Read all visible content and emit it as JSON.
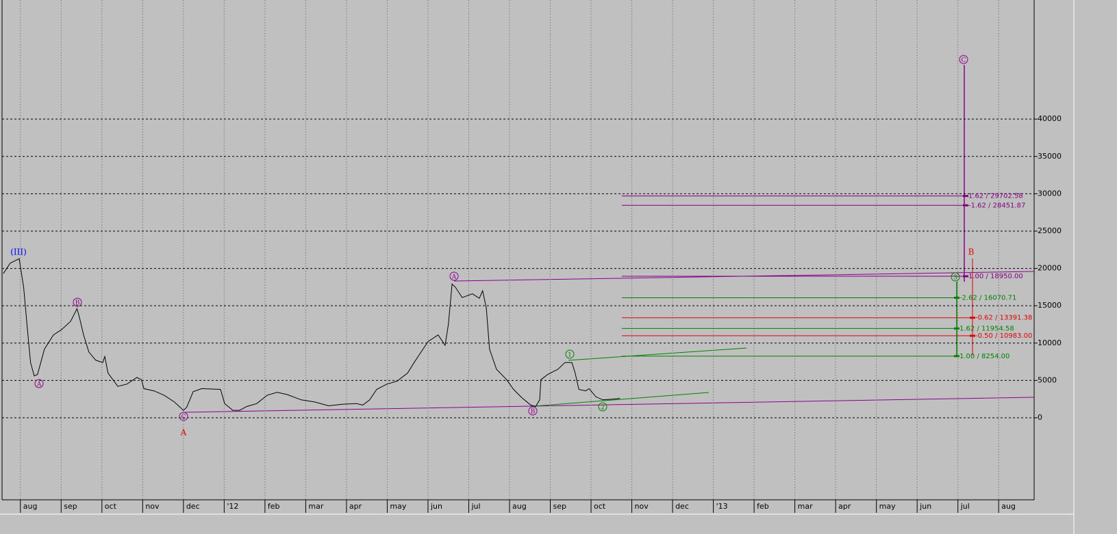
{
  "chart_data": {
    "type": "line",
    "xlim": [
      -0.5,
      24.87
    ],
    "ylim": [
      -10900,
      55950
    ],
    "grid": true,
    "color": "#000000",
    "xticks": [
      {
        "value": 0,
        "label": "aug"
      },
      {
        "value": 1,
        "label": "sep"
      },
      {
        "value": 2,
        "label": "oct"
      },
      {
        "value": 3,
        "label": "nov"
      },
      {
        "value": 4,
        "label": "dec"
      },
      {
        "value": 5,
        "label": "'12"
      },
      {
        "value": 6,
        "label": "feb"
      },
      {
        "value": 7,
        "label": "mar"
      },
      {
        "value": 8,
        "label": "apr"
      },
      {
        "value": 9,
        "label": "may"
      },
      {
        "value": 10,
        "label": "jun"
      },
      {
        "value": 11,
        "label": "jul"
      },
      {
        "value": 12,
        "label": "aug"
      },
      {
        "value": 13,
        "label": "sep"
      },
      {
        "value": 14,
        "label": "oct"
      },
      {
        "value": 15,
        "label": "nov"
      },
      {
        "value": 16,
        "label": "dec"
      },
      {
        "value": 17,
        "label": "'13"
      },
      {
        "value": 18,
        "label": "feb"
      },
      {
        "value": 19,
        "label": "mar"
      },
      {
        "value": 20,
        "label": "apr"
      },
      {
        "value": 21,
        "label": "may"
      },
      {
        "value": 22,
        "label": "jun"
      },
      {
        "value": 23,
        "label": "jul"
      },
      {
        "value": 24,
        "label": "aug"
      }
    ],
    "yticks": [
      0,
      5000,
      10000,
      15000,
      20000,
      25000,
      30000,
      35000,
      40000
    ],
    "x": [
      -0.42,
      -0.25,
      -0.03,
      0.08,
      0.17,
      0.25,
      0.34,
      0.42,
      0.59,
      0.81,
      1.01,
      1.23,
      1.39,
      1.45,
      1.55,
      1.68,
      1.85,
      2.02,
      2.07,
      2.15,
      2.39,
      2.61,
      2.86,
      2.97,
      3.03,
      3.28,
      3.53,
      3.78,
      4.0,
      4.08,
      4.24,
      4.45,
      4.91,
      5.01,
      5.21,
      5.38,
      5.55,
      5.8,
      6.05,
      6.3,
      6.55,
      6.89,
      7.23,
      7.56,
      7.9,
      8.24,
      8.4,
      8.57,
      8.74,
      8.99,
      9.24,
      9.5,
      9.66,
      9.83,
      10.0,
      10.25,
      10.42,
      10.5,
      10.59,
      10.67,
      10.84,
      11.09,
      11.26,
      11.34,
      11.43,
      11.51,
      11.68,
      11.93,
      12.1,
      12.3,
      12.52,
      12.64,
      12.74,
      12.77,
      12.94,
      13.19,
      13.36,
      13.53,
      13.61,
      13.7,
      13.87,
      13.95,
      14.12,
      14.29,
      14.54,
      14.71
    ],
    "values": [
      19300,
      20700,
      21300,
      17500,
      12000,
      7400,
      5600,
      5800,
      9200,
      11100,
      11800,
      12900,
      14600,
      13400,
      11100,
      8800,
      7700,
      7400,
      8200,
      6000,
      4200,
      4500,
      5400,
      5100,
      3900,
      3600,
      3000,
      2100,
      1000,
      1400,
      3500,
      3900,
      3800,
      1900,
      1000,
      1000,
      1500,
      1900,
      3000,
      3400,
      3100,
      2400,
      2100,
      1600,
      1800,
      1900,
      1700,
      2400,
      3800,
      4500,
      4900,
      6000,
      7400,
      8800,
      10200,
      11100,
      9700,
      12500,
      17900,
      17500,
      16100,
      16600,
      16000,
      17000,
      14700,
      9200,
      6500,
      5100,
      3800,
      2700,
      1700,
      1500,
      2400,
      5100,
      5800,
      6500,
      7400,
      7400,
      6000,
      3800,
      3600,
      3900,
      2800,
      2400,
      2500,
      2600
    ],
    "levels": [
      {
        "value": 29702.58,
        "label": "1.62 / 29702.58",
        "color": "#800080"
      },
      {
        "value": 28451.87,
        "label": "-1.62 / 28451.87",
        "color": "#800080"
      },
      {
        "value": 18950.0,
        "label": "1.00 / 18950.00",
        "color": "#800080"
      },
      {
        "value": 16070.71,
        "label": "-2.62 / 16070.71",
        "color": "#008000"
      },
      {
        "value": 11954.58,
        "label": "1.62 / 11954.58",
        "color": "#008000"
      },
      {
        "value": 8254.0,
        "label": "1.00 / 8254.00",
        "color": "#008000"
      },
      {
        "value": 13391.38,
        "label": "-0.62 / 13391.38",
        "color": "#e00000"
      },
      {
        "value": 10983.0,
        "label": "-0.50 / 10983.00",
        "color": "#e00000"
      }
    ],
    "annotations": [
      "(III)",
      "A",
      "B",
      "C",
      "A",
      "A",
      "B",
      "1",
      "2",
      "3",
      "C",
      "B"
    ]
  }
}
